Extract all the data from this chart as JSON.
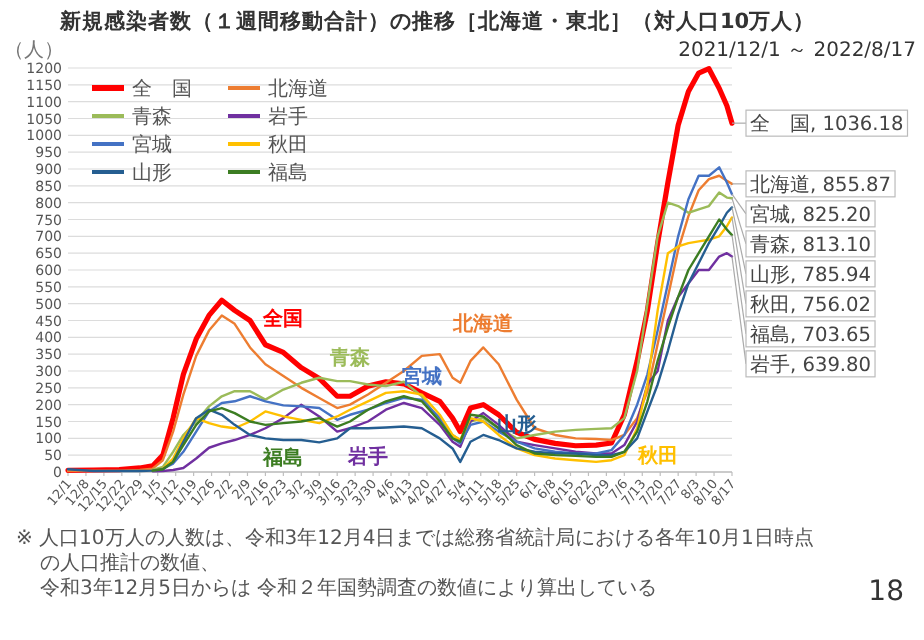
{
  "chart_data": {
    "type": "line",
    "title": "新規感染者数（１週間移動合計）の推移［北海道・東北］（対人口10万人）",
    "subtitle": "2021/12/1 ～ 2022/8/17",
    "ylabel": "（人）",
    "x": [
      "2021-12-01",
      "2021-12-11",
      "2021-12-21",
      "2021-12-29",
      "2022-01-03",
      "2022-01-07",
      "2022-01-11",
      "2022-01-15",
      "2022-01-20",
      "2022-01-25",
      "2022-01-30",
      "2022-02-04",
      "2022-02-10",
      "2022-02-16",
      "2022-02-23",
      "2022-03-02",
      "2022-03-09",
      "2022-03-16",
      "2022-03-21",
      "2022-03-28",
      "2022-04-04",
      "2022-04-11",
      "2022-04-18",
      "2022-04-25",
      "2022-04-30",
      "2022-05-03",
      "2022-05-07",
      "2022-05-12",
      "2022-05-18",
      "2022-05-25",
      "2022-06-01",
      "2022-06-09",
      "2022-06-17",
      "2022-06-25",
      "2022-07-01",
      "2022-07-06",
      "2022-07-11",
      "2022-07-15",
      "2022-07-19",
      "2022-07-23",
      "2022-07-27",
      "2022-07-31",
      "2022-08-04",
      "2022-08-08",
      "2022-08-12",
      "2022-08-15",
      "2022-08-17"
    ],
    "xlim": [
      "2021-12-01",
      "2022-08-17"
    ],
    "xticks": [
      {
        "value": "2021-12-01",
        "label": "12/1"
      },
      {
        "value": "2021-12-08",
        "label": "12/8"
      },
      {
        "value": "2021-12-15",
        "label": "12/15"
      },
      {
        "value": "2021-12-22",
        "label": "12/22"
      },
      {
        "value": "2021-12-29",
        "label": "12/29"
      },
      {
        "value": "2022-01-05",
        "label": "1/5"
      },
      {
        "value": "2022-01-12",
        "label": "1/12"
      },
      {
        "value": "2022-01-19",
        "label": "1/19"
      },
      {
        "value": "2022-01-26",
        "label": "1/26"
      },
      {
        "value": "2022-02-02",
        "label": "2/2"
      },
      {
        "value": "2022-02-09",
        "label": "2/9"
      },
      {
        "value": "2022-02-16",
        "label": "2/16"
      },
      {
        "value": "2022-02-23",
        "label": "2/23"
      },
      {
        "value": "2022-03-02",
        "label": "3/2"
      },
      {
        "value": "2022-03-09",
        "label": "3/9"
      },
      {
        "value": "2022-03-16",
        "label": "3/16"
      },
      {
        "value": "2022-03-23",
        "label": "3/23"
      },
      {
        "value": "2022-03-30",
        "label": "3/30"
      },
      {
        "value": "2022-04-06",
        "label": "4/6"
      },
      {
        "value": "2022-04-13",
        "label": "4/13"
      },
      {
        "value": "2022-04-20",
        "label": "4/20"
      },
      {
        "value": "2022-04-27",
        "label": "4/27"
      },
      {
        "value": "2022-05-04",
        "label": "5/4"
      },
      {
        "value": "2022-05-11",
        "label": "5/11"
      },
      {
        "value": "2022-05-18",
        "label": "5/18"
      },
      {
        "value": "2022-05-25",
        "label": "5/25"
      },
      {
        "value": "2022-06-01",
        "label": "6/1"
      },
      {
        "value": "2022-06-08",
        "label": "6/8"
      },
      {
        "value": "2022-06-15",
        "label": "6/15"
      },
      {
        "value": "2022-06-22",
        "label": "6/22"
      },
      {
        "value": "2022-06-29",
        "label": "6/29"
      },
      {
        "value": "2022-07-06",
        "label": "7/6"
      },
      {
        "value": "2022-07-13",
        "label": "7/13"
      },
      {
        "value": "2022-07-20",
        "label": "7/20"
      },
      {
        "value": "2022-07-27",
        "label": "7/27"
      },
      {
        "value": "2022-08-03",
        "label": "8/3"
      },
      {
        "value": "2022-08-10",
        "label": "8/10"
      },
      {
        "value": "2022-08-17",
        "label": "8/17"
      }
    ],
    "ylim": [
      0,
      1200
    ],
    "yticks": [
      0,
      50,
      100,
      150,
      200,
      250,
      300,
      350,
      400,
      450,
      500,
      550,
      600,
      650,
      700,
      750,
      800,
      850,
      900,
      950,
      1000,
      1050,
      1100,
      1150,
      1200
    ],
    "grid": "y",
    "legend": "top left",
    "line_style": "solid",
    "series": [
      {
        "name": "全　国",
        "color": "#ff0000",
        "values": [
          5,
          6,
          7,
          12,
          18,
          50,
          160,
          290,
          395,
          465,
          510,
          480,
          450,
          378,
          355,
          310,
          278,
          225,
          225,
          255,
          268,
          262,
          235,
          210,
          160,
          120,
          190,
          200,
          170,
          118,
          97,
          85,
          78,
          80,
          86,
          170,
          330,
          480,
          680,
          860,
          1030,
          1130,
          1185,
          1198,
          1140,
          1088,
          1036.18
        ],
        "value_labels": [
          null,
          null,
          null,
          null,
          null,
          null,
          null,
          null,
          null,
          null,
          null,
          null,
          null,
          null,
          null,
          null,
          null,
          null,
          null,
          null,
          null,
          null,
          null,
          null,
          null,
          null,
          null,
          null,
          null,
          null,
          null,
          null,
          null,
          null,
          null,
          null,
          null,
          null,
          null,
          null,
          null,
          null,
          null,
          null,
          null,
          null,
          "全　国, 1036.18"
        ]
      },
      {
        "name": "北海道",
        "color": "#ed7d31",
        "values": [
          3,
          4,
          4,
          6,
          10,
          35,
          120,
          230,
          345,
          420,
          465,
          440,
          370,
          320,
          285,
          250,
          220,
          190,
          200,
          230,
          265,
          300,
          345,
          350,
          280,
          265,
          330,
          370,
          320,
          215,
          130,
          110,
          100,
          98,
          95,
          110,
          160,
          240,
          380,
          520,
          660,
          760,
          837,
          870,
          880,
          865,
          855.87
        ],
        "value_labels": [
          null,
          null,
          null,
          null,
          null,
          null,
          null,
          null,
          null,
          null,
          null,
          null,
          null,
          null,
          null,
          null,
          null,
          null,
          null,
          null,
          null,
          null,
          null,
          null,
          null,
          null,
          null,
          null,
          null,
          null,
          null,
          null,
          null,
          null,
          null,
          null,
          null,
          null,
          null,
          null,
          null,
          null,
          null,
          null,
          null,
          null,
          "北海道, 855.87"
        ]
      },
      {
        "name": "青森",
        "color": "#9bbb59",
        "values": [
          null,
          null,
          null,
          null,
          6,
          15,
          60,
          110,
          150,
          195,
          225,
          240,
          240,
          215,
          245,
          265,
          280,
          270,
          270,
          260,
          255,
          268,
          225,
          150,
          110,
          95,
          150,
          160,
          130,
          100,
          110,
          120,
          125,
          128,
          130,
          160,
          300,
          500,
          700,
          800,
          790,
          770,
          780,
          790,
          830,
          815,
          813.1
        ],
        "value_labels": [
          null,
          null,
          null,
          null,
          null,
          null,
          null,
          null,
          null,
          null,
          null,
          null,
          null,
          null,
          null,
          null,
          null,
          null,
          null,
          null,
          null,
          null,
          null,
          null,
          null,
          null,
          null,
          null,
          null,
          null,
          null,
          null,
          null,
          null,
          null,
          null,
          null,
          null,
          null,
          null,
          null,
          null,
          null,
          null,
          null,
          null,
          "青森, 813.10"
        ]
      },
      {
        "name": "岩手",
        "color": "#7030a0",
        "values": [
          null,
          null,
          null,
          null,
          2,
          3,
          6,
          12,
          40,
          72,
          85,
          95,
          110,
          130,
          160,
          200,
          165,
          120,
          130,
          150,
          185,
          205,
          190,
          140,
          90,
          75,
          150,
          175,
          140,
          90,
          80,
          70,
          60,
          55,
          55,
          80,
          150,
          260,
          300,
          450,
          520,
          560,
          600,
          600,
          640,
          650,
          639.8
        ],
        "value_labels": [
          null,
          null,
          null,
          null,
          null,
          null,
          null,
          null,
          null,
          null,
          null,
          null,
          null,
          null,
          null,
          null,
          null,
          null,
          null,
          null,
          null,
          null,
          null,
          null,
          null,
          null,
          null,
          null,
          null,
          null,
          null,
          null,
          null,
          null,
          null,
          null,
          null,
          null,
          null,
          null,
          null,
          null,
          null,
          null,
          null,
          null,
          "岩手, 639.80"
        ]
      },
      {
        "name": "宮城",
        "color": "#4472c4",
        "values": [
          null,
          null,
          null,
          null,
          4,
          10,
          25,
          60,
          120,
          180,
          205,
          210,
          225,
          210,
          198,
          195,
          190,
          155,
          170,
          185,
          205,
          220,
          215,
          160,
          100,
          85,
          140,
          150,
          120,
          90,
          70,
          60,
          55,
          55,
          65,
          110,
          200,
          290,
          420,
          560,
          700,
          810,
          880,
          880,
          905,
          860,
          825.2
        ],
        "value_labels": [
          null,
          null,
          null,
          null,
          null,
          null,
          null,
          null,
          null,
          null,
          null,
          null,
          null,
          null,
          null,
          null,
          null,
          null,
          null,
          null,
          null,
          null,
          null,
          null,
          null,
          null,
          null,
          null,
          null,
          null,
          null,
          null,
          null,
          null,
          null,
          null,
          null,
          null,
          null,
          null,
          null,
          null,
          null,
          null,
          null,
          null,
          "宮城, 825.20"
        ]
      },
      {
        "name": "秋田",
        "color": "#ffc000",
        "values": [
          null,
          null,
          null,
          null,
          4,
          10,
          40,
          100,
          160,
          145,
          135,
          130,
          150,
          180,
          165,
          155,
          145,
          165,
          185,
          210,
          235,
          240,
          230,
          170,
          110,
          95,
          160,
          150,
          110,
          70,
          50,
          40,
          35,
          30,
          35,
          50,
          130,
          260,
          480,
          650,
          670,
          680,
          685,
          690,
          700,
          730,
          756.02
        ],
        "value_labels": [
          null,
          null,
          null,
          null,
          null,
          null,
          null,
          null,
          null,
          null,
          null,
          null,
          null,
          null,
          null,
          null,
          null,
          null,
          null,
          null,
          null,
          null,
          null,
          null,
          null,
          null,
          null,
          null,
          null,
          null,
          null,
          null,
          null,
          null,
          null,
          null,
          null,
          null,
          null,
          null,
          null,
          null,
          null,
          null,
          null,
          null,
          "秋田, 756.02"
        ]
      },
      {
        "name": "山形",
        "color": "#255e91",
        "values": [
          8,
          3,
          3,
          3,
          4,
          8,
          30,
          90,
          160,
          185,
          170,
          140,
          110,
          100,
          95,
          95,
          88,
          100,
          130,
          130,
          132,
          135,
          130,
          100,
          70,
          30,
          90,
          110,
          95,
          70,
          60,
          55,
          55,
          50,
          50,
          60,
          100,
          180,
          260,
          360,
          470,
          560,
          620,
          680,
          730,
          770,
          785.94
        ],
        "value_labels": [
          null,
          null,
          null,
          null,
          null,
          null,
          null,
          null,
          null,
          null,
          null,
          null,
          null,
          null,
          null,
          null,
          null,
          null,
          null,
          null,
          null,
          null,
          null,
          null,
          null,
          null,
          null,
          null,
          null,
          null,
          null,
          null,
          null,
          null,
          null,
          null,
          null,
          null,
          null,
          null,
          null,
          null,
          null,
          null,
          null,
          null,
          "山形, 785.94"
        ]
      },
      {
        "name": "福島",
        "color": "#3c7d22",
        "values": [
          null,
          null,
          null,
          null,
          4,
          8,
          30,
          80,
          140,
          180,
          190,
          175,
          150,
          140,
          145,
          150,
          160,
          135,
          150,
          185,
          210,
          225,
          210,
          150,
          100,
          90,
          170,
          165,
          130,
          80,
          55,
          50,
          48,
          45,
          45,
          60,
          120,
          210,
          330,
          430,
          520,
          600,
          650,
          700,
          750,
          720,
          703.65
        ],
        "value_labels": [
          null,
          null,
          null,
          null,
          null,
          null,
          null,
          null,
          null,
          null,
          null,
          null,
          null,
          null,
          null,
          null,
          null,
          null,
          null,
          null,
          null,
          null,
          null,
          null,
          null,
          null,
          null,
          null,
          null,
          null,
          null,
          null,
          null,
          null,
          null,
          null,
          null,
          null,
          null,
          null,
          null,
          null,
          null,
          null,
          null,
          null,
          "福島, 703.65"
        ]
      }
    ],
    "annotations": [
      {
        "text": "全国",
        "x": "2022-02-23",
        "y": 355
      },
      {
        "text": "北海道",
        "x": "2022-05-12",
        "y": 370
      },
      {
        "text": "青森",
        "x": "2022-03-21",
        "y": 270
      },
      {
        "text": "岩手",
        "x": "2022-03-28",
        "y": 150
      },
      {
        "text": "宮城",
        "x": "2022-04-18",
        "y": 215
      },
      {
        "text": "秋田",
        "x": "2022-07-06",
        "y": 50
      },
      {
        "text": "山形",
        "x": "2022-05-25",
        "y": 70
      },
      {
        "text": "福島",
        "x": "2022-02-23",
        "y": 145
      },
      "※ 人口10万人の人数は、令和3年12月4日までは総務省統計局における各年10月1日時点の人口推計の数値、",
      "令和3年12月5日からは 令和２年国勢調査の数値により算出している",
      "18"
    ]
  }
}
